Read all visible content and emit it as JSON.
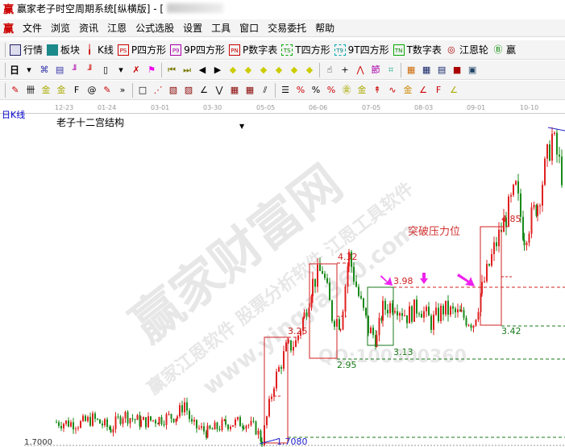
{
  "title": "赢家老子时空周期系统[纵横版] - [",
  "menu": [
    "文件",
    "浏览",
    "资讯",
    "江恩",
    "公式选股",
    "设置",
    "工具",
    "窗口",
    "交易委托",
    "帮助"
  ],
  "toolbar1": [
    {
      "icon": "grid-icon",
      "label": "行情"
    },
    {
      "icon": "blocks-icon",
      "label": "板块"
    },
    {
      "icon": "candles-icon",
      "label": "K线"
    },
    {
      "icon": "ps-icon",
      "label": "P四方形"
    },
    {
      "icon": "p9-icon",
      "label": "9P四方形"
    },
    {
      "icon": "pn-icon",
      "label": "P数字表"
    },
    {
      "icon": "ts-icon",
      "label": "T四方形"
    },
    {
      "icon": "t9-icon",
      "label": "9T四方形"
    },
    {
      "icon": "tn-icon",
      "label": "T数字表"
    },
    {
      "icon": "target-icon",
      "label": "江恩轮"
    },
    {
      "icon": "big-icon",
      "label": "赢"
    }
  ],
  "toolbar2_period": "日",
  "axis_dates": [
    "12-23",
    "01-24",
    "03-01",
    "03-30",
    "05-05",
    "06-06",
    "07-05",
    "08-03",
    "09-01",
    "10-10"
  ],
  "chart_type_label": "日K线",
  "indicator_name": "老子十二宫结构",
  "price_axis_label": "1.7000",
  "annotation": "突破压力位",
  "levels": {
    "l432": "4.32",
    "l325": "3.25",
    "l295": "2.95",
    "l398": "3.98",
    "l313": "3.13",
    "l342": "3.42",
    "l485": "4.85",
    "low": "1.7080"
  },
  "watermark": {
    "main": "赢家财富网",
    "sub": "赢家江恩软件 股票分析软件 江恩工具软件",
    "url": "www.yingjia360.com",
    "qq": "QQ:100300360"
  },
  "colors": {
    "up": "#e02020",
    "down": "#1a8a1a",
    "box_red": "#d02020",
    "box_green": "#1a7a1a",
    "arrow": "#ee22ee",
    "trend": "#2222cc"
  },
  "price_path": [
    [
      0,
      2.0
    ],
    [
      20,
      1.98
    ],
    [
      30,
      2.05
    ],
    [
      45,
      1.9
    ],
    [
      55,
      2.12
    ],
    [
      70,
      2.0
    ],
    [
      85,
      2.05
    ],
    [
      100,
      2.1
    ],
    [
      106,
      2.3
    ],
    [
      112,
      1.95
    ],
    [
      125,
      1.85
    ],
    [
      140,
      1.98
    ],
    [
      155,
      2.0
    ],
    [
      165,
      1.9
    ],
    [
      170,
      1.72
    ],
    [
      180,
      2.6
    ],
    [
      190,
      3.1
    ],
    [
      198,
      3.2
    ],
    [
      205,
      3.6
    ],
    [
      212,
      4.1
    ],
    [
      220,
      4.3
    ],
    [
      228,
      3.6
    ],
    [
      235,
      3.5
    ],
    [
      242,
      4.5
    ],
    [
      250,
      3.9
    ],
    [
      258,
      3.4
    ],
    [
      265,
      3.25
    ],
    [
      270,
      3.7
    ],
    [
      280,
      3.8
    ],
    [
      290,
      3.6
    ],
    [
      300,
      3.75
    ],
    [
      310,
      3.5
    ],
    [
      320,
      3.7
    ],
    [
      335,
      3.6
    ],
    [
      345,
      3.5
    ],
    [
      352,
      4.0
    ],
    [
      362,
      4.6
    ],
    [
      370,
      5.0
    ],
    [
      380,
      5.5
    ],
    [
      387,
      4.8
    ],
    [
      398,
      5.3
    ],
    [
      410,
      6.3
    ],
    [
      420,
      5.6
    ]
  ]
}
